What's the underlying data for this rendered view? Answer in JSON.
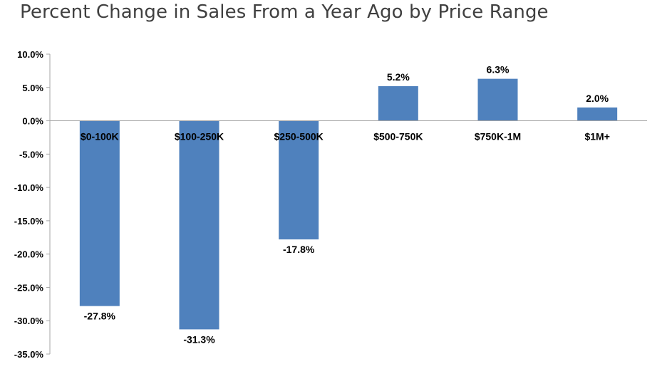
{
  "chart_data": {
    "type": "bar",
    "title": "Percent Change in Sales From a Year Ago by Price Range",
    "categories": [
      "$0-100K",
      "$100-250K",
      "$250-500K",
      "$500-750K",
      "$750K-1M",
      "$1M+"
    ],
    "values": [
      -27.8,
      -31.3,
      -17.8,
      5.2,
      6.3,
      2.0
    ],
    "data_labels": [
      "-27.8%",
      "-31.3%",
      "-17.8%",
      "5.2%",
      "6.3%",
      "2.0%"
    ],
    "ylim": [
      -35,
      10
    ],
    "yticks": [
      10,
      5,
      0,
      -5,
      -10,
      -15,
      -20,
      -25,
      -30,
      -35
    ],
    "ytick_labels": [
      "10.0%",
      "5.0%",
      "0.0%",
      "-5.0%",
      "-10.0%",
      "-15.0%",
      "-20.0%",
      "-25.0%",
      "-30.0%",
      "-35.0%"
    ],
    "xlabel": "",
    "ylabel": "",
    "bar_color": "#4f81bd",
    "grid": false,
    "legend": "none"
  }
}
